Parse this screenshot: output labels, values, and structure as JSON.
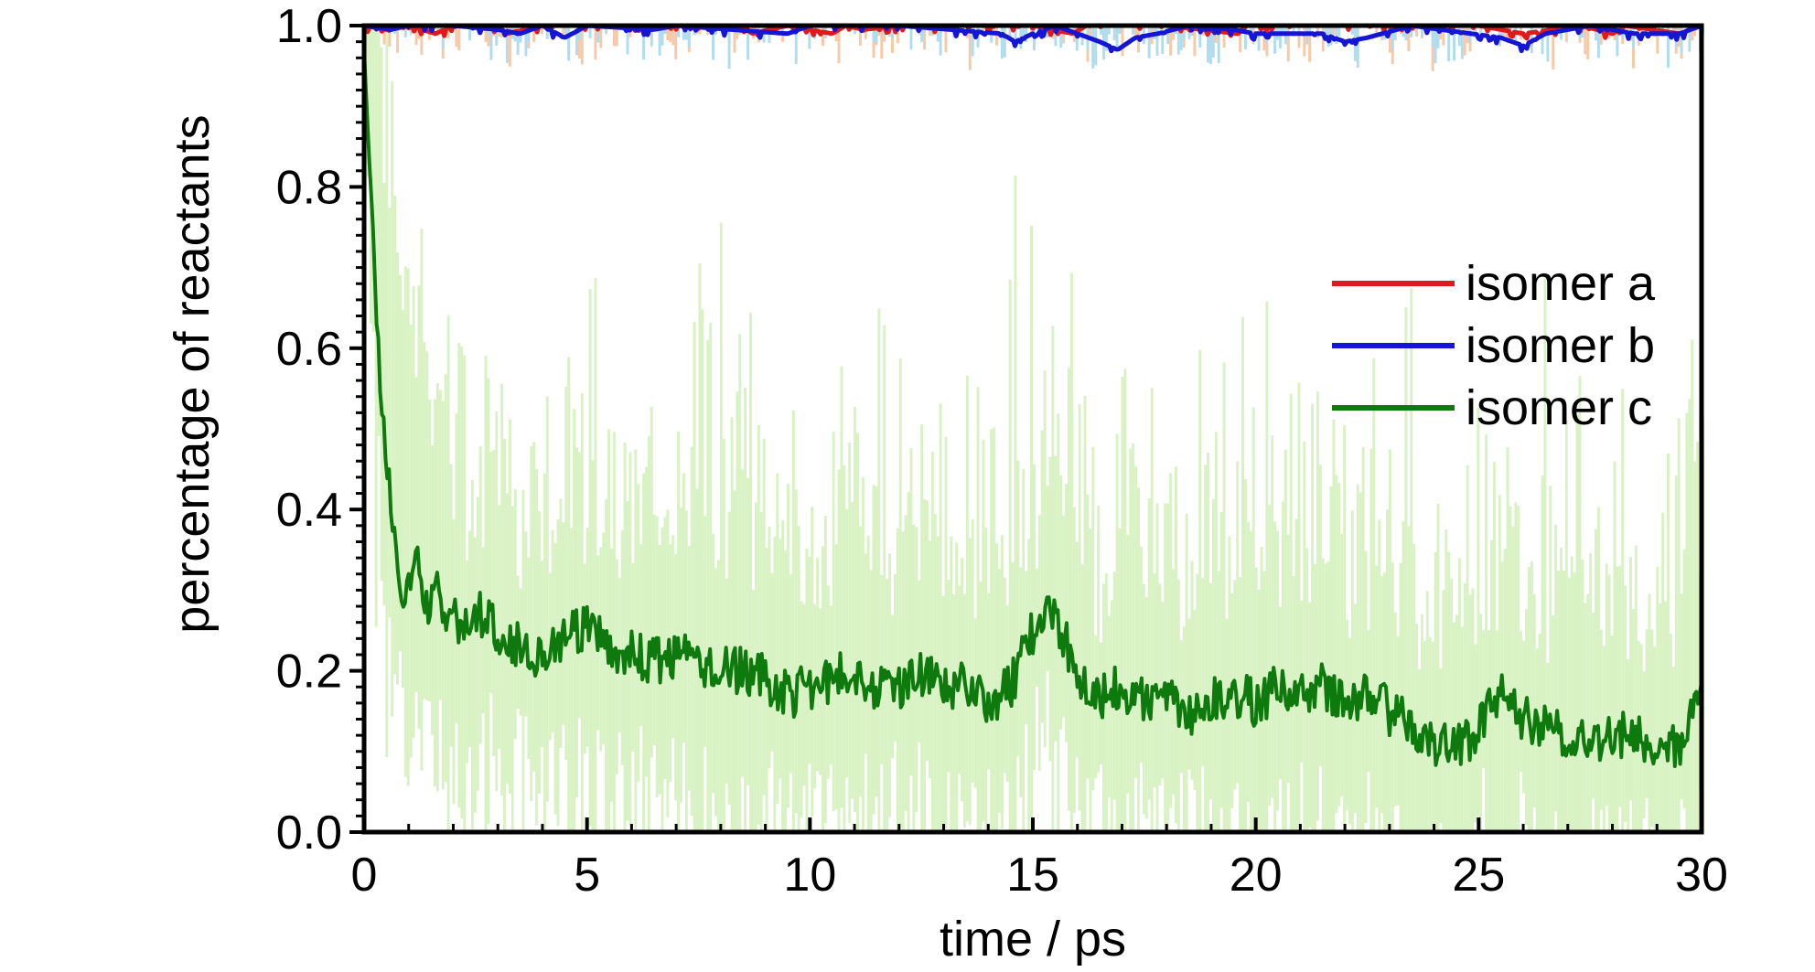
{
  "chart_data": {
    "type": "line",
    "title": "",
    "xlabel": "time / ps",
    "ylabel": "percentage of reactants",
    "xlim": [
      0,
      30
    ],
    "ylim": [
      0.0,
      1.0
    ],
    "x_ticks": [
      0,
      5,
      10,
      15,
      20,
      25,
      30
    ],
    "y_ticks": [
      0.0,
      0.2,
      0.4,
      0.6,
      0.8,
      1.0
    ],
    "x_tick_labels": [
      "0",
      "5",
      "10",
      "15",
      "20",
      "25",
      "30"
    ],
    "y_tick_labels": [
      "0.0",
      "0.2",
      "0.4",
      "0.6",
      "0.8",
      "1.0"
    ],
    "grid": false,
    "legend_position": "center-right",
    "series": [
      {
        "name": "isomer a",
        "color": "#e0191c",
        "band_color": "#f7c9a8",
        "x": [
          0,
          0.5,
          1.0,
          1.6,
          2.0,
          3.0,
          3.2,
          4.0,
          5.0,
          6.0,
          7.0,
          8.5,
          8.7,
          9.5,
          10.5,
          10.8,
          11.2,
          12.0,
          13.0,
          14.0,
          15.0,
          15.9,
          16.2,
          17.0,
          18.0,
          19.6,
          19.8,
          20.5,
          22.0,
          23.5,
          25.0,
          26.0,
          27.3,
          28.0,
          28.3,
          29.5,
          30
        ],
        "y": [
          1.0,
          0.995,
          1.0,
          0.99,
          1.0,
          1.0,
          0.99,
          1.0,
          1.0,
          1.0,
          1.0,
          1.0,
          0.99,
          1.0,
          0.99,
          1.0,
          0.995,
          1.0,
          1.0,
          1.0,
          1.0,
          0.99,
          1.0,
          1.0,
          1.0,
          0.99,
          1.0,
          1.0,
          1.0,
          1.0,
          1.0,
          0.99,
          1.0,
          0.99,
          1.0,
          0.99,
          1.0
        ]
      },
      {
        "name": "isomer b",
        "color": "#1515d4",
        "band_color": "#b0dcef",
        "x": [
          0,
          0.6,
          1.0,
          2.0,
          3.0,
          3.5,
          4.0,
          4.5,
          5.0,
          6.5,
          7.0,
          9.5,
          10.0,
          12.0,
          14.3,
          14.6,
          15.0,
          15.5,
          16.0,
          16.5,
          16.9,
          17.3,
          17.8,
          18.5,
          19.5,
          20.0,
          21.5,
          22.0,
          22.5,
          23.5,
          25.5,
          26.0,
          26.5,
          27.5,
          28.5,
          29.5,
          30
        ],
        "y": [
          1.0,
          0.995,
          1.0,
          1.0,
          0.995,
          0.99,
          1.0,
          0.985,
          1.0,
          0.995,
          1.0,
          0.99,
          1.0,
          1.0,
          0.99,
          0.98,
          0.99,
          1.0,
          0.99,
          0.98,
          0.97,
          0.985,
          0.99,
          1.0,
          0.995,
          0.99,
          0.99,
          0.98,
          0.985,
          1.0,
          0.985,
          0.975,
          0.99,
          1.0,
          0.99,
          0.99,
          1.0
        ]
      },
      {
        "name": "isomer c",
        "color": "#0e7a0d",
        "band_color": "#d9f2c4",
        "x": [
          0,
          0.1,
          0.2,
          0.3,
          0.4,
          0.5,
          0.6,
          0.7,
          0.8,
          0.9,
          1.0,
          1.2,
          1.4,
          1.6,
          1.8,
          2.0,
          2.3,
          2.6,
          2.9,
          3.2,
          3.5,
          4.0,
          4.5,
          5.0,
          5.5,
          6.0,
          6.5,
          7.0,
          7.5,
          8.0,
          8.5,
          9.0,
          9.5,
          10.0,
          10.5,
          11.0,
          11.5,
          12.0,
          12.5,
          13.0,
          13.5,
          14.0,
          14.5,
          15.0,
          15.5,
          16.0,
          16.5,
          17.0,
          17.5,
          18.0,
          18.5,
          19.0,
          19.5,
          20.0,
          20.5,
          21.0,
          21.5,
          22.0,
          22.5,
          23.0,
          23.5,
          24.0,
          24.5,
          25.0,
          25.5,
          26.0,
          26.5,
          27.0,
          27.5,
          28.0,
          28.5,
          29.0,
          29.5,
          30.0
        ],
        "y": [
          0.97,
          0.85,
          0.75,
          0.6,
          0.52,
          0.45,
          0.4,
          0.36,
          0.32,
          0.29,
          0.3,
          0.33,
          0.28,
          0.3,
          0.26,
          0.27,
          0.25,
          0.27,
          0.26,
          0.24,
          0.23,
          0.22,
          0.24,
          0.25,
          0.23,
          0.22,
          0.21,
          0.22,
          0.21,
          0.2,
          0.2,
          0.19,
          0.17,
          0.18,
          0.19,
          0.2,
          0.18,
          0.18,
          0.2,
          0.17,
          0.19,
          0.16,
          0.18,
          0.25,
          0.27,
          0.2,
          0.17,
          0.18,
          0.16,
          0.17,
          0.15,
          0.16,
          0.17,
          0.16,
          0.18,
          0.17,
          0.18,
          0.16,
          0.17,
          0.15,
          0.13,
          0.11,
          0.1,
          0.13,
          0.18,
          0.14,
          0.13,
          0.12,
          0.11,
          0.12,
          0.12,
          0.11,
          0.11,
          0.16
        ]
      }
    ]
  }
}
